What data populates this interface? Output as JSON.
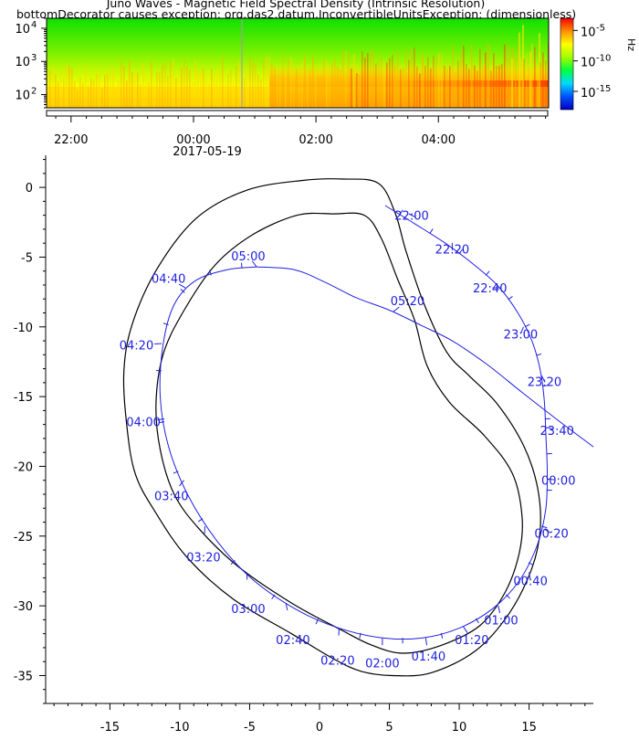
{
  "title": "Juno Waves - Magnetic Field Spectral Density (Intrinsic Resolution)",
  "error_message": "bottomDecorator causes exception: org.das2.datum.InconvertibleUnitsException: (dimensionless)",
  "colors": {
    "orbit_track": "#2020e0",
    "boundary": "#000000",
    "axis": "#000000"
  },
  "chart_data": [
    {
      "type": "heatmap",
      "x_ticks": [
        {
          "time": "22:00",
          "hours": -2
        },
        {
          "time": "00:00",
          "hours": 0
        },
        {
          "time": "02:00",
          "hours": 2
        },
        {
          "time": "04:00",
          "hours": 4
        }
      ],
      "x_date_label": "2017-05-19",
      "xlim_hours": [
        -2.4,
        5.8
      ],
      "y_scale": "log",
      "y_ticks": [
        {
          "label": "10",
          "exp": "2",
          "value": 100
        },
        {
          "label": "10",
          "exp": "3",
          "value": 1000
        },
        {
          "label": "10",
          "exp": "4",
          "value": 10000
        }
      ],
      "ylim": [
        40,
        20000
      ],
      "ylabel": "Hz",
      "colorbar": {
        "scale": "log",
        "ticks": [
          {
            "label": "10",
            "exp": "-5",
            "value": 1e-05
          },
          {
            "label": "10",
            "exp": "-10",
            "value": 1e-10
          },
          {
            "label": "10",
            "exp": "-15",
            "value": 1e-15
          }
        ],
        "colors": [
          "#0000c0",
          "#0050ff",
          "#00d8ff",
          "#00ff40",
          "#a0ff00",
          "#ffff00",
          "#ff9000",
          "#ff0000"
        ]
      }
    },
    {
      "type": "line",
      "xlim": [
        -19.6,
        19.6
      ],
      "ylim": [
        -37,
        2.3
      ],
      "x_ticks": [
        -15,
        -10,
        -5,
        0,
        5,
        10,
        15
      ],
      "y_ticks": [
        0,
        -5,
        -10,
        -15,
        -20,
        -25,
        -30,
        -35
      ],
      "outer_boundary": [
        [
          4.2,
          0.3
        ],
        [
          1.7,
          0.6
        ],
        [
          -1.2,
          0.5
        ],
        [
          -5.2,
          -0.2
        ],
        [
          -8.8,
          -2.2
        ],
        [
          -11.6,
          -5.8
        ],
        [
          -13.4,
          -9.8
        ],
        [
          -14.0,
          -13.2
        ],
        [
          -13.8,
          -17.0
        ],
        [
          -13.2,
          -20.5
        ],
        [
          -11.8,
          -23.2
        ],
        [
          -9.5,
          -26.5
        ],
        [
          -6.2,
          -29.5
        ],
        [
          -2.0,
          -32.0
        ],
        [
          1.0,
          -33.8
        ],
        [
          3.0,
          -34.7
        ],
        [
          5.2,
          -35.0
        ],
        [
          8.0,
          -34.8
        ],
        [
          11.2,
          -33.2
        ],
        [
          13.6,
          -30.5
        ],
        [
          15.2,
          -27.3
        ],
        [
          15.8,
          -24.5
        ],
        [
          15.6,
          -21.5
        ],
        [
          14.6,
          -18.5
        ],
        [
          12.7,
          -15.5
        ],
        [
          10.7,
          -13.5
        ],
        [
          9.1,
          -11.8
        ],
        [
          7.5,
          -8.4
        ],
        [
          6.2,
          -4.6
        ],
        [
          5.4,
          -1.8
        ],
        [
          4.2,
          0.3
        ]
      ],
      "inner_boundary": [
        [
          3.2,
          -2.0
        ],
        [
          1.0,
          -1.9
        ],
        [
          -1.6,
          -2.0
        ],
        [
          -4.8,
          -3.4
        ],
        [
          -7.5,
          -5.6
        ],
        [
          -9.8,
          -9.0
        ],
        [
          -11.2,
          -12.0
        ],
        [
          -11.7,
          -15.5
        ],
        [
          -11.4,
          -18.8
        ],
        [
          -10.4,
          -22.0
        ],
        [
          -8.6,
          -24.5
        ],
        [
          -5.8,
          -27.2
        ],
        [
          -2.0,
          -29.8
        ],
        [
          1.5,
          -31.7
        ],
        [
          3.7,
          -32.8
        ],
        [
          6.0,
          -33.4
        ],
        [
          8.8,
          -32.8
        ],
        [
          11.5,
          -31.4
        ],
        [
          13.3,
          -29.0
        ],
        [
          14.3,
          -26.2
        ],
        [
          14.5,
          -23.6
        ],
        [
          13.8,
          -20.5
        ],
        [
          11.8,
          -17.8
        ],
        [
          9.3,
          -15.4
        ],
        [
          7.7,
          -12.8
        ],
        [
          6.8,
          -9.5
        ],
        [
          5.6,
          -6.6
        ],
        [
          4.4,
          -3.6
        ],
        [
          3.2,
          -2.0
        ]
      ],
      "orbit_loop": [
        [
          -4.5,
          -5.7
        ],
        [
          -1.8,
          -5.9
        ],
        [
          0.4,
          -6.8
        ],
        [
          2.6,
          -7.9
        ],
        [
          5.0,
          -8.8
        ],
        [
          7.3,
          -9.9
        ],
        [
          9.5,
          -11.0
        ],
        [
          12.0,
          -12.7
        ],
        [
          14.5,
          -14.7
        ],
        [
          17.2,
          -16.8
        ],
        [
          19.6,
          -18.6
        ]
      ],
      "orbit_main": [
        [
          4.7,
          -1.3
        ],
        [
          6.8,
          -2.6
        ],
        [
          9.0,
          -4.0
        ],
        [
          11.0,
          -5.5
        ],
        [
          12.8,
          -7.1
        ],
        [
          14.2,
          -9.0
        ],
        [
          15.2,
          -11.0
        ],
        [
          15.8,
          -13.1
        ],
        [
          16.1,
          -15.4
        ],
        [
          16.2,
          -17.8
        ],
        [
          16.3,
          -20.4
        ],
        [
          16.2,
          -23.0
        ],
        [
          15.6,
          -25.6
        ],
        [
          14.3,
          -28.2
        ],
        [
          12.4,
          -30.2
        ],
        [
          10.0,
          -31.6
        ],
        [
          7.4,
          -32.3
        ],
        [
          4.5,
          -32.3
        ],
        [
          1.4,
          -31.6
        ],
        [
          -1.6,
          -30.3
        ],
        [
          -4.8,
          -28.1
        ],
        [
          -7.3,
          -25.4
        ],
        [
          -9.4,
          -22.1
        ],
        [
          -10.8,
          -18.6
        ],
        [
          -11.4,
          -15.0
        ],
        [
          -11.2,
          -11.3
        ],
        [
          -10.4,
          -8.4
        ],
        [
          -8.9,
          -6.7
        ],
        [
          -6.6,
          -5.9
        ],
        [
          -4.5,
          -5.7
        ]
      ],
      "time_labels": [
        {
          "text": "22:00",
          "x": 6.6,
          "y": -2.0,
          "at": [
            6.4,
            -1.9
          ]
        },
        {
          "text": "22:20",
          "x": 9.5,
          "y": -4.4,
          "at": [
            9.5,
            -4.5
          ]
        },
        {
          "text": "22:40",
          "x": 12.2,
          "y": -7.2,
          "at": [
            12.9,
            -7.2
          ]
        },
        {
          "text": "23:00",
          "x": 14.4,
          "y": -10.5,
          "at": [
            14.6,
            -10.0
          ]
        },
        {
          "text": "23:20",
          "x": 16.1,
          "y": -13.9,
          "at": [
            15.9,
            -13.5
          ]
        },
        {
          "text": "23:40",
          "x": 17.0,
          "y": -17.4,
          "at": [
            16.2,
            -17.2
          ]
        },
        {
          "text": "00:00",
          "x": 17.1,
          "y": -21.0,
          "at": [
            16.3,
            -20.9
          ]
        },
        {
          "text": "00:20",
          "x": 16.6,
          "y": -24.8,
          "at": [
            16.1,
            -24.5
          ]
        },
        {
          "text": "00:40",
          "x": 15.1,
          "y": -28.2,
          "at": [
            15.0,
            -27.6
          ]
        },
        {
          "text": "01:00",
          "x": 13.0,
          "y": -31.0,
          "at": [
            12.8,
            -30.0
          ]
        },
        {
          "text": "01:20",
          "x": 10.9,
          "y": -32.4,
          "at": [
            10.3,
            -31.5
          ]
        },
        {
          "text": "01:40",
          "x": 7.8,
          "y": -33.6,
          "at": [
            7.6,
            -32.3
          ]
        },
        {
          "text": "02:00",
          "x": 4.5,
          "y": -34.1,
          "at": [
            4.5,
            -32.3
          ]
        },
        {
          "text": "02:20",
          "x": 1.3,
          "y": -33.9,
          "at": [
            1.4,
            -31.6
          ]
        },
        {
          "text": "02:40",
          "x": -1.9,
          "y": -32.4,
          "at": [
            -2.4,
            -29.8
          ]
        },
        {
          "text": "03:00",
          "x": -5.1,
          "y": -30.2,
          "at": [
            -5.2,
            -27.6
          ]
        },
        {
          "text": "03:20",
          "x": -8.3,
          "y": -26.5,
          "at": [
            -8.2,
            -24.3
          ]
        },
        {
          "text": "03:40",
          "x": -10.6,
          "y": -22.1,
          "at": [
            -9.7,
            -21.0
          ]
        },
        {
          "text": "04:00",
          "x": -12.6,
          "y": -16.8,
          "at": [
            -11.1,
            -16.6
          ]
        },
        {
          "text": "04:20",
          "x": -13.1,
          "y": -11.3,
          "at": [
            -11.3,
            -11.2
          ]
        },
        {
          "text": "04:40",
          "x": -10.8,
          "y": -6.5,
          "at": [
            -9.6,
            -7.2
          ]
        },
        {
          "text": "05:00",
          "x": -5.1,
          "y": -4.9,
          "at": [
            -4.5,
            -5.7
          ]
        },
        {
          "text": "05:20",
          "x": 6.3,
          "y": -8.1,
          "at": [
            5.3,
            -8.9
          ]
        }
      ]
    }
  ]
}
